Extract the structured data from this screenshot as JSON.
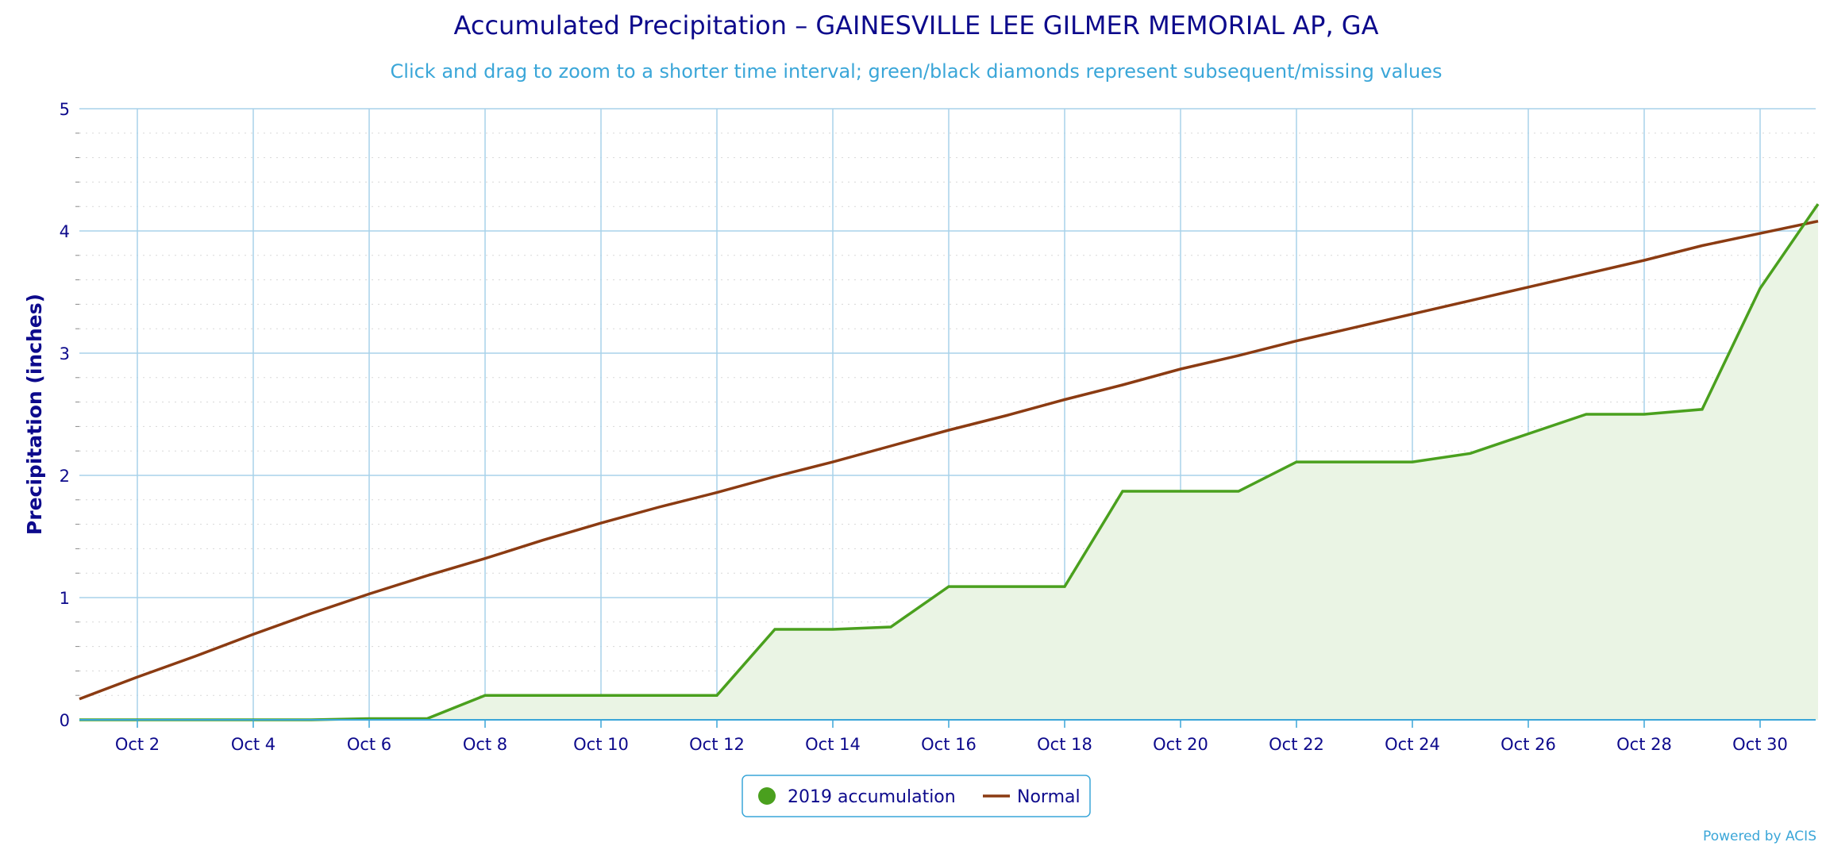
{
  "chart_data": {
    "type": "area",
    "title": "Accumulated Precipitation – GAINESVILLE LEE GILMER MEMORIAL AP, GA",
    "subtitle": "Click and drag to zoom to a shorter time interval; green/black diamonds represent subsequent/missing values",
    "ylabel": "Precipitation (inches)",
    "xlabel": "",
    "ylim": [
      0,
      5
    ],
    "y_ticks": [
      "0",
      "1",
      "2",
      "3",
      "4",
      "5"
    ],
    "x_ticks": [
      "Oct 2",
      "Oct 4",
      "Oct 6",
      "Oct 8",
      "Oct 10",
      "Oct 12",
      "Oct 14",
      "Oct 16",
      "Oct 18",
      "Oct 20",
      "Oct 22",
      "Oct 24",
      "Oct 26",
      "Oct 28",
      "Oct 30"
    ],
    "x": [
      "Oct 1",
      "Oct 2",
      "Oct 3",
      "Oct 4",
      "Oct 5",
      "Oct 6",
      "Oct 7",
      "Oct 8",
      "Oct 9",
      "Oct 10",
      "Oct 11",
      "Oct 12",
      "Oct 13",
      "Oct 14",
      "Oct 15",
      "Oct 16",
      "Oct 17",
      "Oct 18",
      "Oct 19",
      "Oct 20",
      "Oct 21",
      "Oct 22",
      "Oct 23",
      "Oct 24",
      "Oct 25",
      "Oct 26",
      "Oct 27",
      "Oct 28",
      "Oct 29",
      "Oct 30",
      "Oct 31"
    ],
    "series": [
      {
        "name": "2019 accumulation",
        "color": "#4aa01e",
        "fill": "#eaf4e4",
        "values": [
          0,
          0,
          0,
          0,
          0,
          0.01,
          0.01,
          0.2,
          0.2,
          0.2,
          0.2,
          0.2,
          0.74,
          0.74,
          0.76,
          1.09,
          1.09,
          1.09,
          1.87,
          1.87,
          1.87,
          2.11,
          2.11,
          2.11,
          2.18,
          2.34,
          2.5,
          2.5,
          2.54,
          3.53,
          4.22
        ]
      },
      {
        "name": "Normal",
        "color": "#8b3b12",
        "values": [
          0.17,
          0.35,
          0.52,
          0.7,
          0.87,
          1.03,
          1.18,
          1.32,
          1.47,
          1.61,
          1.74,
          1.86,
          1.99,
          2.11,
          2.24,
          2.37,
          2.49,
          2.62,
          2.74,
          2.87,
          2.98,
          3.1,
          3.21,
          3.32,
          3.43,
          3.54,
          3.65,
          3.76,
          3.88,
          3.98,
          4.08
        ]
      }
    ],
    "grid": true,
    "legend_position": "bottom-center",
    "colors": {
      "grid": "#a8d2ea",
      "axis": "#3aa6d8",
      "text": "#0d0a8c",
      "minor_grid": "#d8d8d8"
    }
  },
  "credit": "Powered by ACIS"
}
